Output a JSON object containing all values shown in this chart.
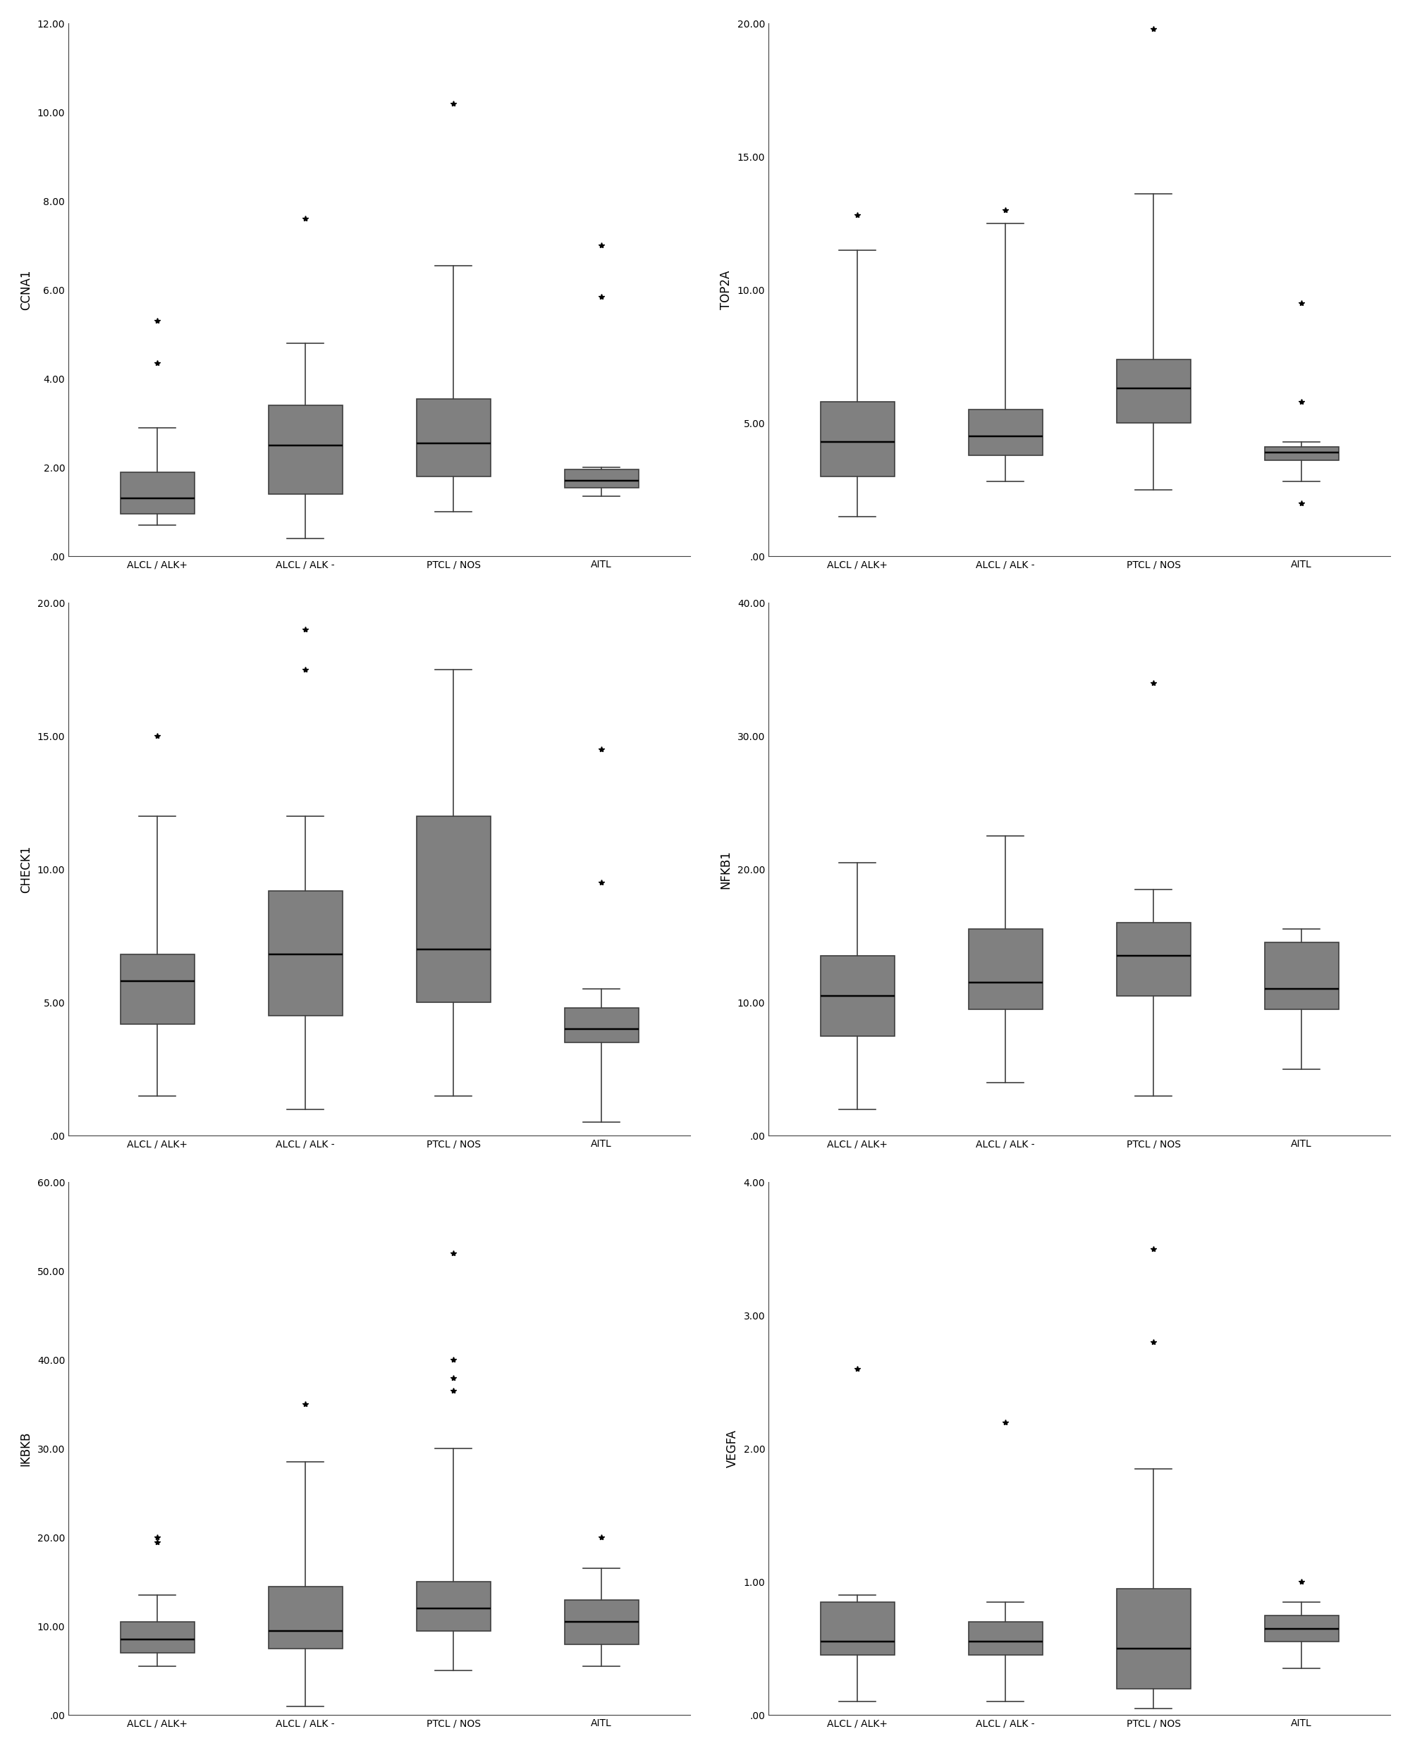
{
  "panels": [
    {
      "ylabel": "CCNA1",
      "ylim": [
        0,
        12
      ],
      "yticks": [
        0,
        2,
        4,
        6,
        8,
        10,
        12
      ],
      "ytick_labels": [
        ".00",
        "2.00",
        "4.00",
        "6.00",
        "8.00",
        "10.00",
        "12.00"
      ],
      "groups": [
        "ALCL / ALK+",
        "ALCL / ALK -",
        "PTCL / NOS",
        "AITL"
      ],
      "boxes": [
        {
          "q1": 0.95,
          "median": 1.3,
          "q3": 1.9,
          "whislo": 0.7,
          "whishi": 2.9,
          "fliers": [
            5.3,
            4.35
          ]
        },
        {
          "q1": 1.4,
          "median": 2.5,
          "q3": 3.4,
          "whislo": 0.4,
          "whishi": 4.8,
          "fliers": [
            7.6
          ]
        },
        {
          "q1": 1.8,
          "median": 2.55,
          "q3": 3.55,
          "whislo": 1.0,
          "whishi": 6.55,
          "fliers": [
            10.2
          ]
        },
        {
          "q1": 1.55,
          "median": 1.7,
          "q3": 1.95,
          "whislo": 1.35,
          "whishi": 2.0,
          "fliers": [
            7.0,
            5.85
          ]
        }
      ]
    },
    {
      "ylabel": "TOP2A",
      "ylim": [
        0,
        20
      ],
      "yticks": [
        0,
        5,
        10,
        15,
        20
      ],
      "ytick_labels": [
        ".00",
        "5.00",
        "10.00",
        "15.00",
        "20.00"
      ],
      "groups": [
        "ALCL / ALK+",
        "ALCL / ALK -",
        "PTCL / NOS",
        "AITL"
      ],
      "boxes": [
        {
          "q1": 3.0,
          "median": 4.3,
          "q3": 5.8,
          "whislo": 1.5,
          "whishi": 11.5,
          "fliers": [
            12.8
          ]
        },
        {
          "q1": 3.8,
          "median": 4.5,
          "q3": 5.5,
          "whislo": 2.8,
          "whishi": 12.5,
          "fliers": [
            13.0
          ]
        },
        {
          "q1": 5.0,
          "median": 6.3,
          "q3": 7.4,
          "whislo": 2.5,
          "whishi": 13.6,
          "fliers": [
            19.8
          ]
        },
        {
          "q1": 3.6,
          "median": 3.9,
          "q3": 4.1,
          "whislo": 2.8,
          "whishi": 4.3,
          "fliers": [
            9.5,
            5.8,
            2.0
          ]
        }
      ]
    },
    {
      "ylabel": "CHECK1",
      "ylim": [
        0,
        20
      ],
      "yticks": [
        0,
        5,
        10,
        15,
        20
      ],
      "ytick_labels": [
        ".00",
        "5.00",
        "10.00",
        "15.00",
        "20.00"
      ],
      "groups": [
        "ALCL / ALK+",
        "ALCL / ALK -",
        "PTCL / NOS",
        "AITL"
      ],
      "boxes": [
        {
          "q1": 4.2,
          "median": 5.8,
          "q3": 6.8,
          "whislo": 1.5,
          "whishi": 12.0,
          "fliers": [
            15.0
          ]
        },
        {
          "q1": 4.5,
          "median": 6.8,
          "q3": 9.2,
          "whislo": 1.0,
          "whishi": 12.0,
          "fliers": [
            17.5,
            19.0
          ]
        },
        {
          "q1": 5.0,
          "median": 7.0,
          "q3": 12.0,
          "whislo": 1.5,
          "whishi": 17.5,
          "fliers": []
        },
        {
          "q1": 3.5,
          "median": 4.0,
          "q3": 4.8,
          "whislo": 0.5,
          "whishi": 5.5,
          "fliers": [
            9.5,
            14.5
          ]
        }
      ]
    },
    {
      "ylabel": "NFKB1",
      "ylim": [
        0,
        40
      ],
      "yticks": [
        0,
        10,
        20,
        30,
        40
      ],
      "ytick_labels": [
        ".00",
        "10.00",
        "20.00",
        "30.00",
        "40.00"
      ],
      "groups": [
        "ALCL / ALK+",
        "ALCL / ALK -",
        "PTCL / NOS",
        "AITL"
      ],
      "boxes": [
        {
          "q1": 7.5,
          "median": 10.5,
          "q3": 13.5,
          "whislo": 2.0,
          "whishi": 20.5,
          "fliers": []
        },
        {
          "q1": 9.5,
          "median": 11.5,
          "q3": 15.5,
          "whislo": 4.0,
          "whishi": 22.5,
          "fliers": []
        },
        {
          "q1": 10.5,
          "median": 13.5,
          "q3": 16.0,
          "whislo": 3.0,
          "whishi": 18.5,
          "fliers": [
            34.0
          ]
        },
        {
          "q1": 9.5,
          "median": 11.0,
          "q3": 14.5,
          "whislo": 5.0,
          "whishi": 15.5,
          "fliers": []
        }
      ]
    },
    {
      "ylabel": "IKBKB",
      "ylim": [
        0,
        60
      ],
      "yticks": [
        0,
        10,
        20,
        30,
        40,
        50,
        60
      ],
      "ytick_labels": [
        ".00",
        "10.00",
        "20.00",
        "30.00",
        "40.00",
        "50.00",
        "60.00"
      ],
      "groups": [
        "ALCL / ALK+",
        "ALCL / ALK -",
        "PTCL / NOS",
        "AITL"
      ],
      "boxes": [
        {
          "q1": 7.0,
          "median": 8.5,
          "q3": 10.5,
          "whislo": 5.5,
          "whishi": 13.5,
          "fliers": [
            19.5,
            20.0
          ]
        },
        {
          "q1": 7.5,
          "median": 9.5,
          "q3": 14.5,
          "whislo": 1.0,
          "whishi": 28.5,
          "fliers": [
            35.0
          ]
        },
        {
          "q1": 9.5,
          "median": 12.0,
          "q3": 15.0,
          "whislo": 5.0,
          "whishi": 30.0,
          "fliers": [
            40.0,
            38.0,
            36.5,
            52.0
          ]
        },
        {
          "q1": 8.0,
          "median": 10.5,
          "q3": 13.0,
          "whislo": 5.5,
          "whishi": 16.5,
          "fliers": [
            20.0
          ]
        }
      ]
    },
    {
      "ylabel": "VEGFA",
      "ylim": [
        0,
        4.0
      ],
      "yticks": [
        0,
        1.0,
        2.0,
        3.0,
        4.0
      ],
      "ytick_labels": [
        ".00",
        "1.00",
        "2.00",
        "3.00",
        "4.00"
      ],
      "groups": [
        "ALCL / ALK+",
        "ALCL / ALK -",
        "PTCL / NOS",
        "AITL"
      ],
      "boxes": [
        {
          "q1": 0.45,
          "median": 0.55,
          "q3": 0.85,
          "whislo": 0.1,
          "whishi": 0.9,
          "fliers": [
            2.6
          ]
        },
        {
          "q1": 0.45,
          "median": 0.55,
          "q3": 0.7,
          "whislo": 0.1,
          "whishi": 0.85,
          "fliers": [
            2.2
          ]
        },
        {
          "q1": 0.2,
          "median": 0.5,
          "q3": 0.95,
          "whislo": 0.05,
          "whishi": 1.85,
          "fliers": [
            3.5,
            2.8
          ]
        },
        {
          "q1": 0.55,
          "median": 0.65,
          "q3": 0.75,
          "whislo": 0.35,
          "whishi": 0.85,
          "fliers": [
            1.0
          ]
        }
      ]
    }
  ],
  "box_color": "#808080",
  "median_color": "#000000",
  "whisker_color": "#404040",
  "flier_marker": "*",
  "flier_color": "#000000",
  "background_color": "#ffffff",
  "box_width": 0.5,
  "linewidth": 1.2,
  "fontsize_ylabel": 12,
  "fontsize_tick": 10,
  "fontsize_xlabel": 10
}
